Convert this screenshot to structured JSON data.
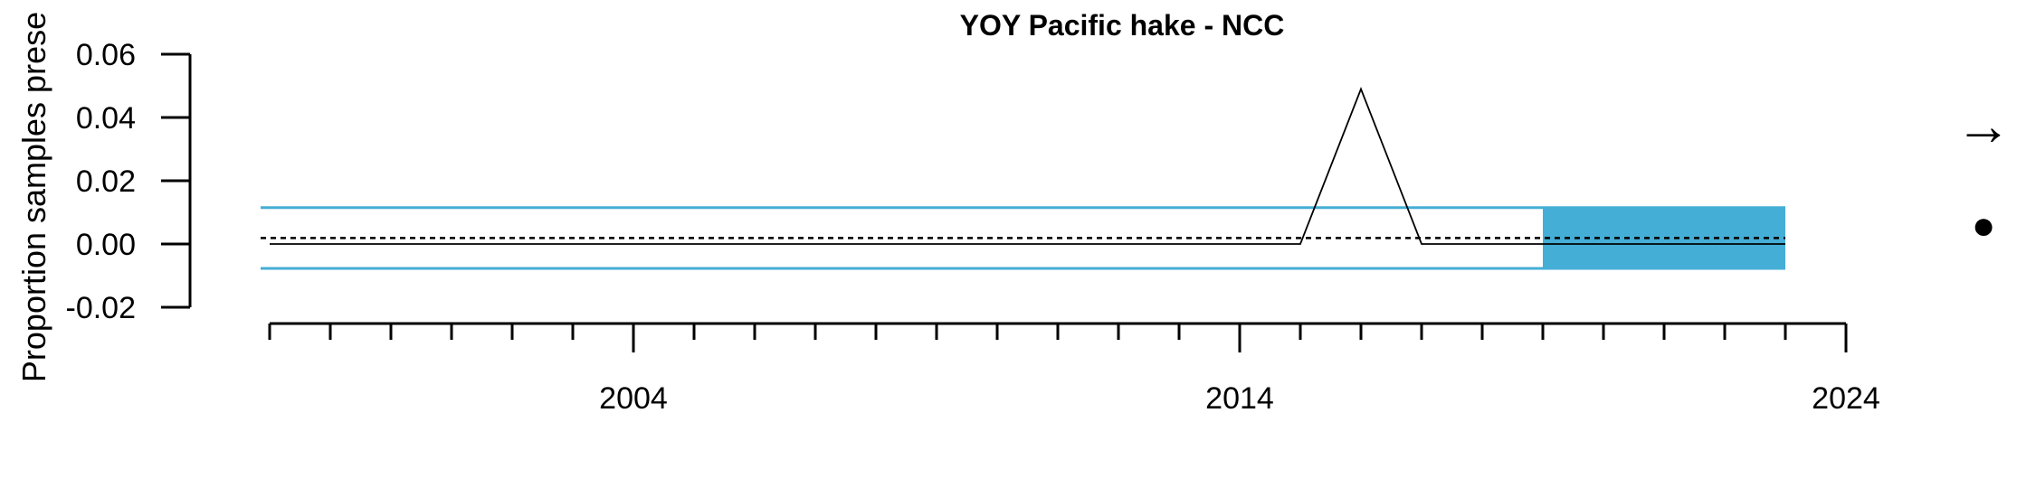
{
  "chart_data": {
    "type": "line",
    "title": "YOY Pacific hake - NCC",
    "xlabel": "",
    "ylabel": "Proportion samples prese",
    "xlim": [
      1998,
      2024
    ],
    "ylim": [
      -0.02,
      0.06
    ],
    "x_ticks": [
      2004,
      2014,
      2024
    ],
    "y_ticks": [
      -0.02,
      0.0,
      0.02,
      0.04,
      0.06
    ],
    "y_tick_labels": [
      "-0.02",
      "0.00",
      "0.02",
      "0.04",
      "0.06"
    ],
    "x": [
      1998,
      1999,
      2000,
      2001,
      2002,
      2003,
      2004,
      2005,
      2006,
      2007,
      2008,
      2009,
      2010,
      2011,
      2012,
      2013,
      2014,
      2015,
      2016,
      2017,
      2018,
      2019,
      2020,
      2021,
      2022,
      2023
    ],
    "values": [
      0,
      0,
      0,
      0,
      0,
      0,
      0,
      0,
      0,
      0,
      0,
      0,
      0,
      0,
      0,
      0,
      0,
      0,
      0.049,
      0,
      0,
      0,
      0,
      0,
      0,
      0
    ],
    "mean": 0.0019,
    "mean_plus_sd": 0.0115,
    "mean_minus_sd": -0.0077,
    "recent_window": [
      2019,
      2023
    ],
    "trend_symbol": "→",
    "mean_symbol": "●",
    "colors": {
      "series": "#000000",
      "sd_band": "#44aed6",
      "recent_shade": "#44aed6"
    },
    "grid": false
  }
}
